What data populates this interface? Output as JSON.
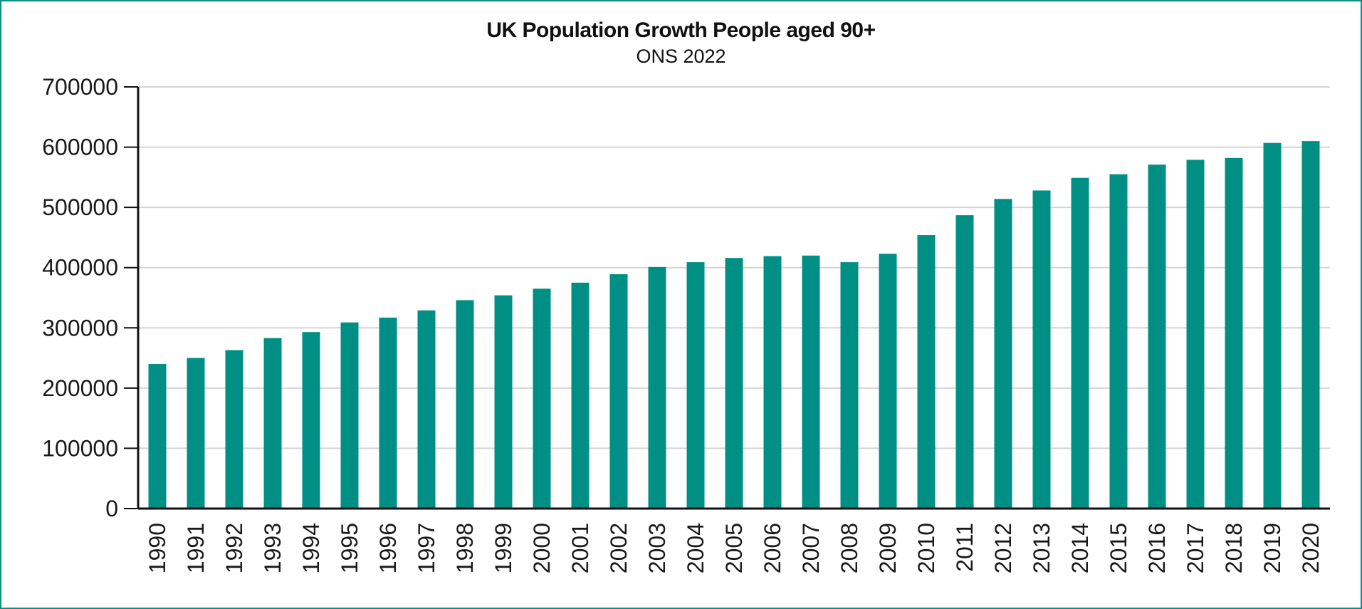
{
  "chart_data": {
    "type": "bar",
    "title": "UK Population Growth People aged 90+",
    "subtitle": "ONS 2022",
    "xlabel": "",
    "ylabel": "",
    "categories": [
      "1990",
      "1991",
      "1992",
      "1993",
      "1994",
      "1995",
      "1996",
      "1997",
      "1998",
      "1999",
      "2000",
      "2001",
      "2002",
      "2003",
      "2004",
      "2005",
      "2006",
      "2007",
      "2008",
      "2009",
      "2010",
      "2011",
      "2012",
      "2013",
      "2014",
      "2015",
      "2016",
      "2017",
      "2018",
      "2019",
      "2020"
    ],
    "values": [
      240000,
      250000,
      263000,
      283000,
      293000,
      309000,
      317000,
      329000,
      346000,
      354000,
      365000,
      375000,
      389000,
      401000,
      409000,
      416000,
      419000,
      420000,
      409000,
      423000,
      454000,
      487000,
      514000,
      528000,
      549000,
      555000,
      571000,
      579000,
      582000,
      607000,
      610000
    ],
    "ylim": [
      0,
      700000
    ],
    "yticks": [
      0,
      100000,
      200000,
      300000,
      400000,
      500000,
      600000,
      700000
    ],
    "ytick_labels": [
      "0",
      "100000",
      "200000",
      "300000",
      "400000",
      "500000",
      "600000",
      "700000"
    ],
    "grid": true,
    "bar_color": "#008f84",
    "grid_color": "#d4d4d4",
    "axis_color": "#111111",
    "frame_color": "#0b8f84"
  }
}
